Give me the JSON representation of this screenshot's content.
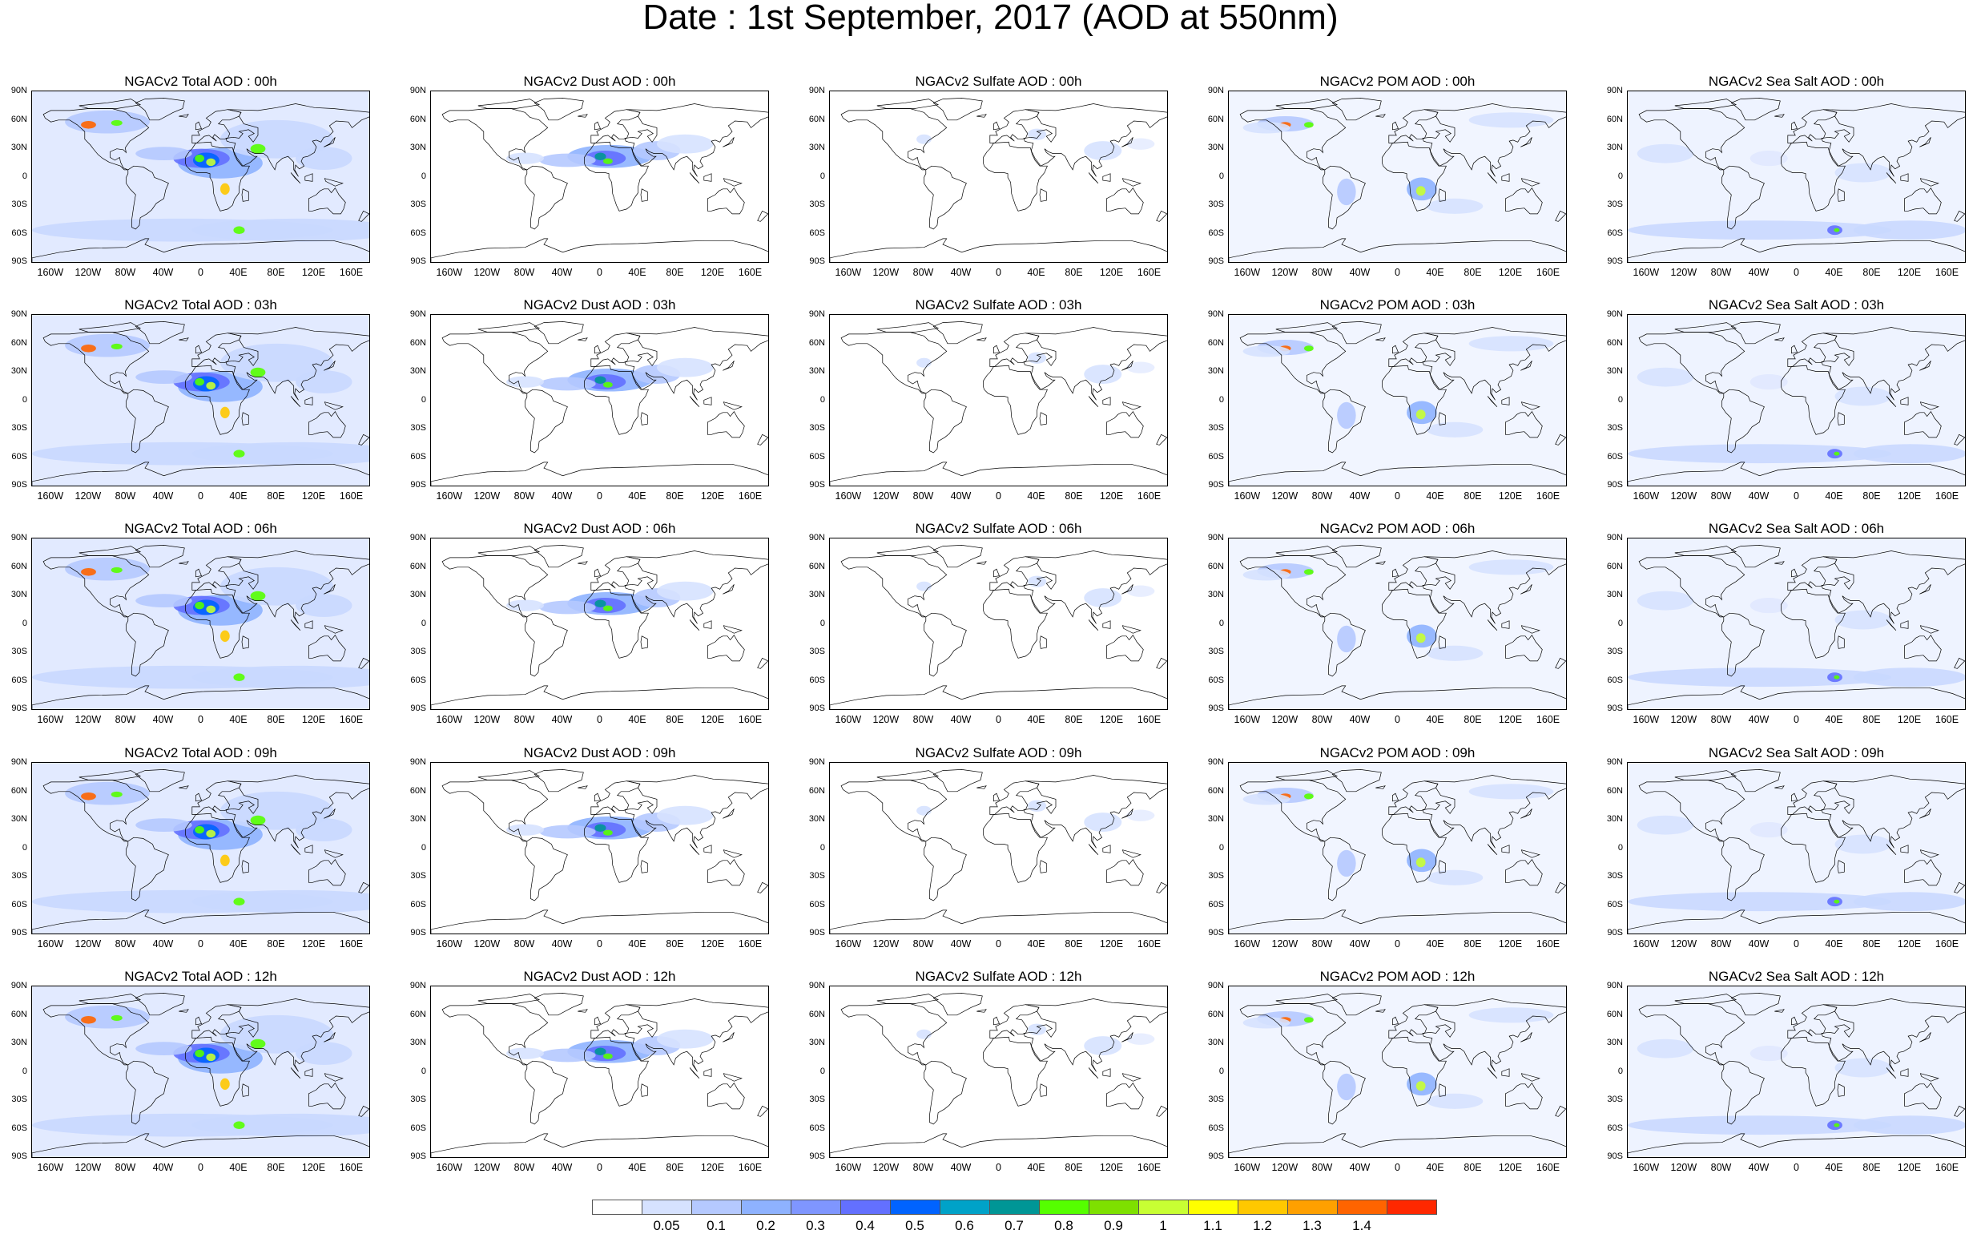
{
  "title": "Date : 1st September, 2017 (AOD at 550nm)",
  "lat_labels": [
    "90N",
    "60N",
    "30N",
    "0",
    "30S",
    "60S",
    "90S"
  ],
  "lon_labels": [
    "160W",
    "120W",
    "80W",
    "40W",
    "0",
    "40E",
    "80E",
    "120E",
    "160E"
  ],
  "panels": [
    [
      "NGACv2 Total AOD : 00h",
      "NGACv2 Dust AOD : 00h",
      "NGACv2 Sulfate AOD : 00h",
      "NGACv2 POM AOD : 00h",
      "NGACv2 Sea Salt AOD : 00h"
    ],
    [
      "NGACv2 Total AOD : 03h",
      "NGACv2 Dust AOD : 03h",
      "NGACv2 Sulfate AOD : 03h",
      "NGACv2 POM AOD : 03h",
      "NGACv2 Sea Salt AOD : 03h"
    ],
    [
      "NGACv2 Total AOD : 06h",
      "NGACv2 Dust AOD : 06h",
      "NGACv2 Sulfate AOD : 06h",
      "NGACv2 POM AOD : 06h",
      "NGACv2 Sea Salt AOD : 06h"
    ],
    [
      "NGACv2 Total AOD : 09h",
      "NGACv2 Dust AOD : 09h",
      "NGACv2 Sulfate AOD : 09h",
      "NGACv2 POM AOD : 09h",
      "NGACv2 Sea Salt  AOD : 09h"
    ],
    [
      "NGACv2 Total AOD  : 12h",
      "NGACv2 Dust AOD : 12h",
      "NGACv2 Sulfate AOD : 12h",
      "NGACv2 POM  AOD : 12h",
      "NGACv2 Sea Salt  AOD : 12h"
    ]
  ],
  "colorbar": {
    "labels": [
      "0.05",
      "0.1",
      "0.2",
      "0.3",
      "0.4",
      "0.5",
      "0.6",
      "0.7",
      "0.8",
      "0.9",
      "1",
      "1.1",
      "1.2",
      "1.3",
      "1.4"
    ],
    "colors": [
      "#ffffff",
      "#d6e2ff",
      "#b5c9ff",
      "#8eb2ff",
      "#7f96ff",
      "#6370ff",
      "#0063ff",
      "#00a2c8",
      "#009696",
      "#55ff00",
      "#7ee000",
      "#c8ff33",
      "#ffff00",
      "#ffc800",
      "#ffa000",
      "#ff6400",
      "#ff2800"
    ]
  },
  "aerosol_types": {
    "total": "broad light-blue coverage over oceans and continents, dust maximum over Sahara, smoke hotspots over western North America and southern Africa",
    "dust": "concentrated over North Africa, Arabia and tropical Atlantic",
    "sulfate": "sparse light patches over Asia, Europe and eastern North America",
    "pom": "smoke over western North America, Siberia and southern Africa/South America",
    "seasalt": "bands over the Southern Ocean and trade-wind oceans"
  }
}
